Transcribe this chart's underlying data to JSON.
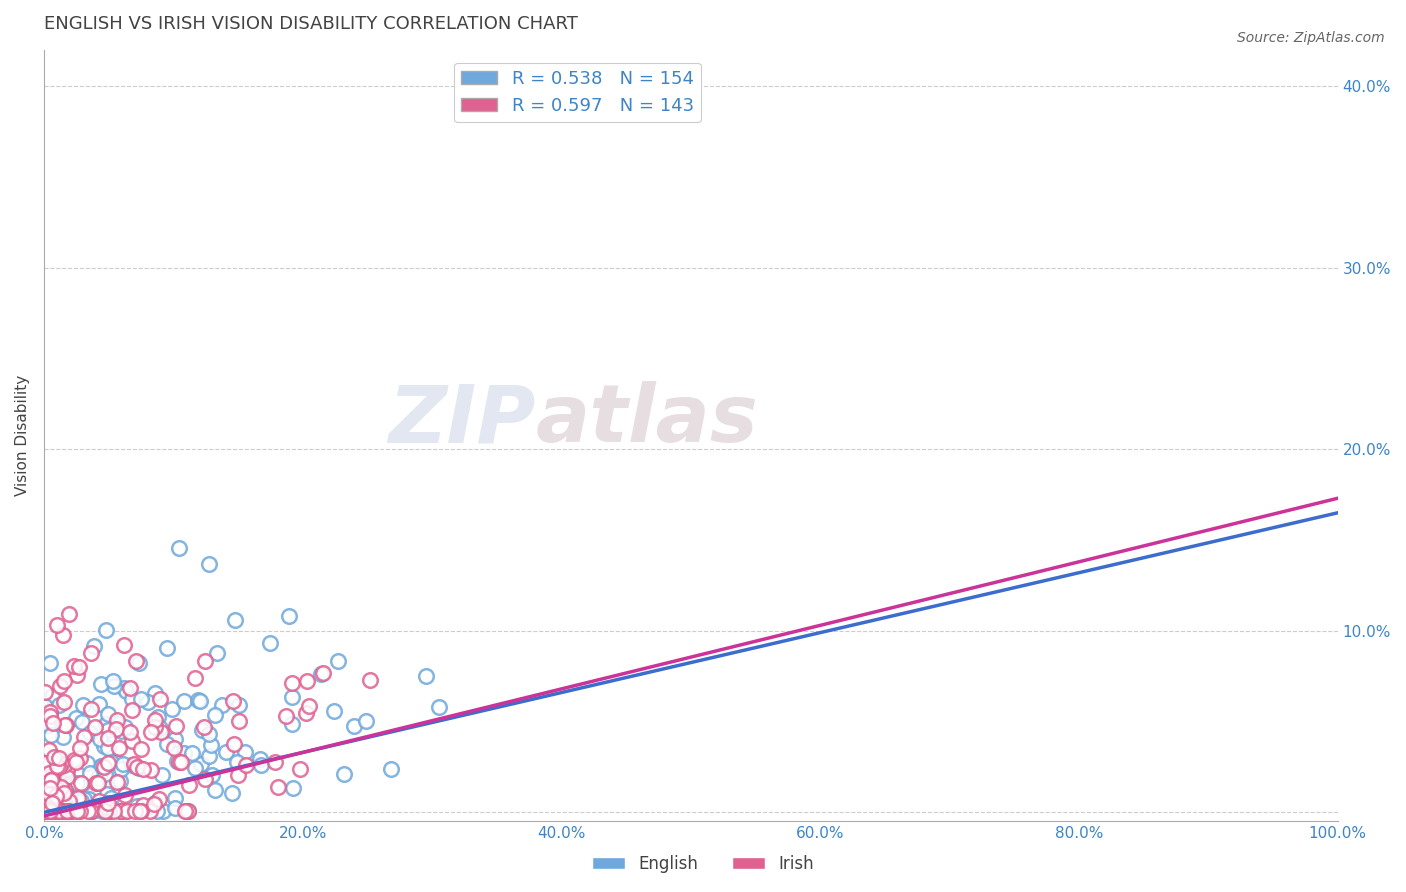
{
  "title": "ENGLISH VS IRISH VISION DISABILITY CORRELATION CHART",
  "source": "Source: ZipAtlas.com",
  "ylabel": "Vision Disability",
  "xlim": [
    0.0,
    1.0
  ],
  "ylim": [
    -0.005,
    0.42
  ],
  "xticks": [
    0.0,
    0.2,
    0.4,
    0.6,
    0.8,
    1.0
  ],
  "yticks": [
    0.0,
    0.1,
    0.2,
    0.3,
    0.4
  ],
  "ytick_labels": [
    "",
    "10.0%",
    "20.0%",
    "30.0%",
    "40.0%"
  ],
  "xtick_labels": [
    "0.0%",
    "20.0%",
    "40.0%",
    "60.0%",
    "80.0%",
    "100.0%"
  ],
  "english_color": "#6fa8dc",
  "irish_color": "#e06090",
  "english_line_color": "#3d6dcc",
  "irish_line_color": "#cc3399",
  "legend_color": "#3d85c8",
  "title_color": "#434343",
  "title_fontsize": 13,
  "axis_label_color": "#434343",
  "tick_color": "#3d85c8",
  "watermark_zip": "ZIP",
  "watermark_atlas": "atlas",
  "background_color": "#ffffff",
  "grid_color": "#cccccc",
  "english_slope": 0.165,
  "english_intercept": 0.0,
  "irish_slope": 0.175,
  "irish_intercept": -0.002
}
